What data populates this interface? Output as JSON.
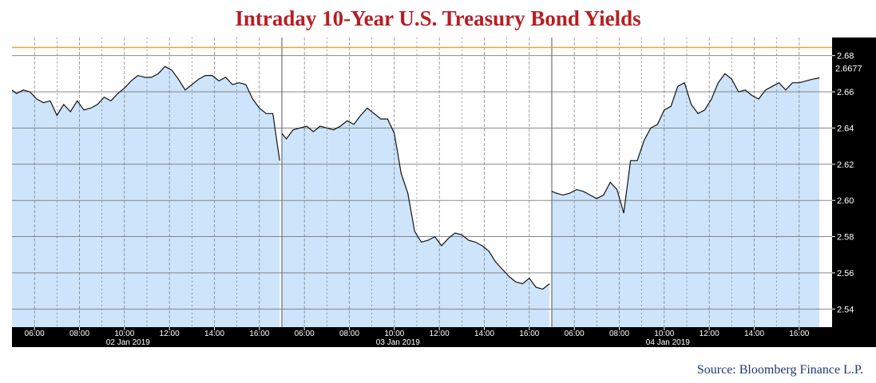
{
  "chart_data": {
    "type": "area",
    "title": "Intraday 10-Year U.S. Treasury Bond Yields",
    "source": "Source: Bloomberg Finance L.P.",
    "ylim": [
      2.53,
      2.69
    ],
    "y_ticks": [
      "2.54",
      "2.56",
      "2.58",
      "2.60",
      "2.62",
      "2.64",
      "2.66",
      "2.68"
    ],
    "last_value_label": "2.6677",
    "last_value": 2.6677,
    "reference_line": 2.6845,
    "colors": {
      "fill": "#cde4fb",
      "line": "#111111",
      "reference": "#e8a33a",
      "axis_bg": "#000000",
      "grid": "#777777"
    },
    "time_ticks": [
      "06:00",
      "08:00",
      "10:00",
      "12:00",
      "14:00",
      "16:00"
    ],
    "hours_range": [
      5,
      17
    ],
    "sessions": [
      {
        "day": "02 Jan 2019",
        "x": [
          5.0,
          5.2,
          5.5,
          5.8,
          6.1,
          6.4,
          6.7,
          7.0,
          7.3,
          7.6,
          7.9,
          8.2,
          8.5,
          8.8,
          9.1,
          9.4,
          9.7,
          10.0,
          10.3,
          10.6,
          10.9,
          11.2,
          11.5,
          11.8,
          12.1,
          12.4,
          12.7,
          13.0,
          13.3,
          13.6,
          13.9,
          14.2,
          14.5,
          14.8,
          15.1,
          15.4,
          15.7,
          16.0,
          16.3,
          16.6,
          16.9
        ],
        "y": [
          2.661,
          2.659,
          2.661,
          2.66,
          2.656,
          2.654,
          2.655,
          2.647,
          2.653,
          2.649,
          2.655,
          2.65,
          2.651,
          2.653,
          2.657,
          2.655,
          2.659,
          2.662,
          2.666,
          2.669,
          2.668,
          2.668,
          2.67,
          2.674,
          2.672,
          2.667,
          2.661,
          2.664,
          2.667,
          2.669,
          2.669,
          2.666,
          2.668,
          2.664,
          2.665,
          2.664,
          2.656,
          2.651,
          2.648,
          2.648,
          2.622
        ]
      },
      {
        "day": "03 Jan 2019",
        "x": [
          5.0,
          5.2,
          5.5,
          5.8,
          6.1,
          6.4,
          6.7,
          7.0,
          7.3,
          7.6,
          7.9,
          8.2,
          8.5,
          8.8,
          9.1,
          9.4,
          9.7,
          10.0,
          10.3,
          10.6,
          10.9,
          11.2,
          11.5,
          11.8,
          12.1,
          12.4,
          12.7,
          13.0,
          13.3,
          13.6,
          13.9,
          14.2,
          14.5,
          14.8,
          15.1,
          15.4,
          15.7,
          16.0,
          16.3,
          16.6,
          16.9
        ],
        "y": [
          2.637,
          2.634,
          2.639,
          2.64,
          2.641,
          2.638,
          2.641,
          2.64,
          2.639,
          2.641,
          2.644,
          2.642,
          2.647,
          2.651,
          2.648,
          2.645,
          2.645,
          2.637,
          2.615,
          2.604,
          2.583,
          2.577,
          2.578,
          2.58,
          2.575,
          2.579,
          2.582,
          2.581,
          2.578,
          2.577,
          2.575,
          2.572,
          2.566,
          2.562,
          2.558,
          2.555,
          2.554,
          2.557,
          2.552,
          2.551,
          2.554
        ]
      },
      {
        "day": "04 Jan 2019",
        "x": [
          5.0,
          5.2,
          5.5,
          5.8,
          6.1,
          6.4,
          6.7,
          7.0,
          7.3,
          7.6,
          7.9,
          8.2,
          8.5,
          8.8,
          9.1,
          9.4,
          9.7,
          10.0,
          10.3,
          10.6,
          10.9,
          11.2,
          11.5,
          11.8,
          12.1,
          12.4,
          12.7,
          13.0,
          13.3,
          13.6,
          13.9,
          14.2,
          14.5,
          14.8,
          15.1,
          15.4,
          15.7,
          16.0,
          16.3,
          16.6,
          16.9
        ],
        "y": [
          2.605,
          2.604,
          2.603,
          2.604,
          2.606,
          2.605,
          2.603,
          2.601,
          2.603,
          2.61,
          2.606,
          2.593,
          2.622,
          2.622,
          2.633,
          2.64,
          2.642,
          2.65,
          2.652,
          2.663,
          2.665,
          2.653,
          2.648,
          2.65,
          2.656,
          2.665,
          2.67,
          2.667,
          2.66,
          2.661,
          2.658,
          2.656,
          2.661,
          2.663,
          2.665,
          2.661,
          2.665,
          2.665,
          2.666,
          2.667,
          2.6677
        ]
      }
    ]
  }
}
